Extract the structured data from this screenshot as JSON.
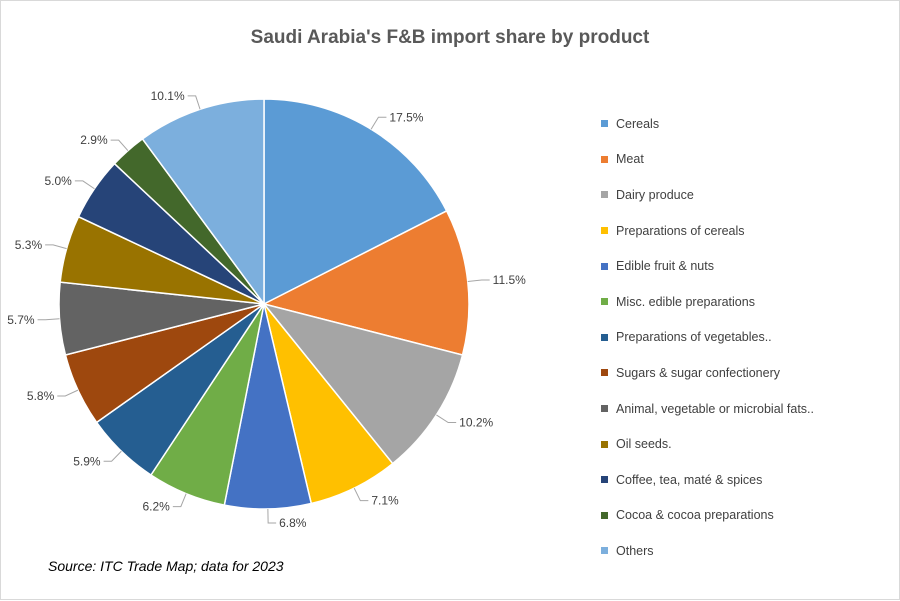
{
  "chart_data": {
    "type": "pie",
    "title": "Saudi Arabia's F&B import share by product",
    "source": "Source: ITC Trade Map; data for 2023",
    "legend_position": "right",
    "slices": [
      {
        "label": "Cereals",
        "value": 17.5,
        "value_label": "17.5%",
        "color": "#5b9bd5"
      },
      {
        "label": "Meat",
        "value": 11.5,
        "value_label": "11.5%",
        "color": "#ed7d31"
      },
      {
        "label": "Dairy produce",
        "value": 10.2,
        "value_label": "10.2%",
        "color": "#a5a5a5"
      },
      {
        "label": "Preparations of cereals",
        "value": 7.1,
        "value_label": "7.1%",
        "color": "#ffc000"
      },
      {
        "label": "Edible fruit & nuts",
        "value": 6.8,
        "value_label": "6.8%",
        "color": "#4472c4"
      },
      {
        "label": "Misc. edible preparations",
        "value": 6.2,
        "value_label": "6.2%",
        "color": "#70ad47"
      },
      {
        "label": "Preparations of vegetables..",
        "value": 5.9,
        "value_label": "5.9%",
        "color": "#255e91"
      },
      {
        "label": "Sugars & sugar confectionery",
        "value": 5.8,
        "value_label": "5.8%",
        "color": "#9e480e"
      },
      {
        "label": "Animal, vegetable or microbial fats..",
        "value": 5.7,
        "value_label": "5.7%",
        "color": "#636363"
      },
      {
        "label": "Oil seeds.",
        "value": 5.3,
        "value_label": "5.3%",
        "color": "#997300"
      },
      {
        "label": "Coffee, tea, maté & spices",
        "value": 5.0,
        "value_label": "5.0%",
        "color": "#264478"
      },
      {
        "label": "Cocoa & cocoa preparations",
        "value": 2.9,
        "value_label": "2.9%",
        "color": "#43682b"
      },
      {
        "label": "Others",
        "value": 10.1,
        "value_label": "10.1%",
        "color": "#7cafdd"
      }
    ]
  }
}
